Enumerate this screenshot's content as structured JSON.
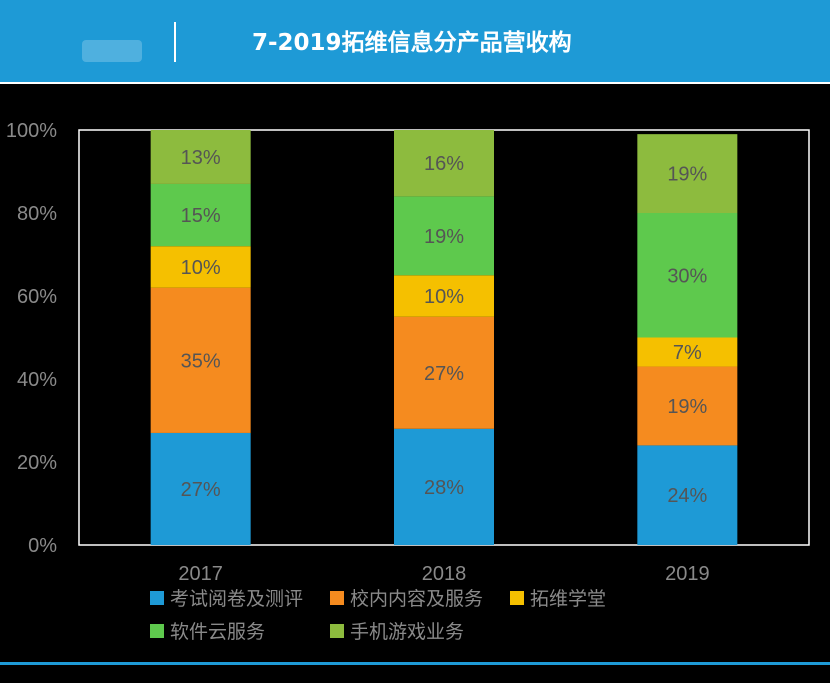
{
  "header": {
    "title": "7-2019拓维信息分产品营收构"
  },
  "colors": {
    "header_bg": "#1e9ad6",
    "background": "#000000",
    "axis_text": "#8a8a8a",
    "exam": "#1e9ad6",
    "campus": "#f58b1f",
    "academy": "#f5c000",
    "software": "#5ec94d",
    "game": "#8dbb3e"
  },
  "chart_data": {
    "type": "bar",
    "stacked": true,
    "categories": [
      "2017",
      "2018",
      "2019"
    ],
    "series": [
      {
        "name": "考试阅卷及测评",
        "values": [
          27,
          28,
          24
        ],
        "labels": [
          "27%",
          "28%",
          "24%"
        ],
        "color": "#1e9ad6"
      },
      {
        "name": "校内内容及服务",
        "values": [
          35,
          27,
          19
        ],
        "labels": [
          "35%",
          "27%",
          "19%"
        ],
        "color": "#f58b1f"
      },
      {
        "name": "拓维学堂",
        "values": [
          10,
          10,
          7
        ],
        "labels": [
          "10%",
          "10%",
          "7%"
        ],
        "color": "#f5c000"
      },
      {
        "name": "软件云服务",
        "values": [
          15,
          19,
          30
        ],
        "labels": [
          "15%",
          "19%",
          "30%"
        ],
        "color": "#5ec94d"
      },
      {
        "name": "手机游戏业务",
        "values": [
          13,
          16,
          19
        ],
        "labels": [
          "13%",
          "16%",
          "19%"
        ],
        "color": "#8dbb3e"
      }
    ],
    "ylim": [
      0,
      100
    ],
    "yticks": [
      "0%",
      "20%",
      "40%",
      "60%",
      "80%",
      "100%"
    ],
    "grid": false,
    "legend_position": "bottom"
  },
  "footer": {
    "source": "",
    "right": ""
  }
}
